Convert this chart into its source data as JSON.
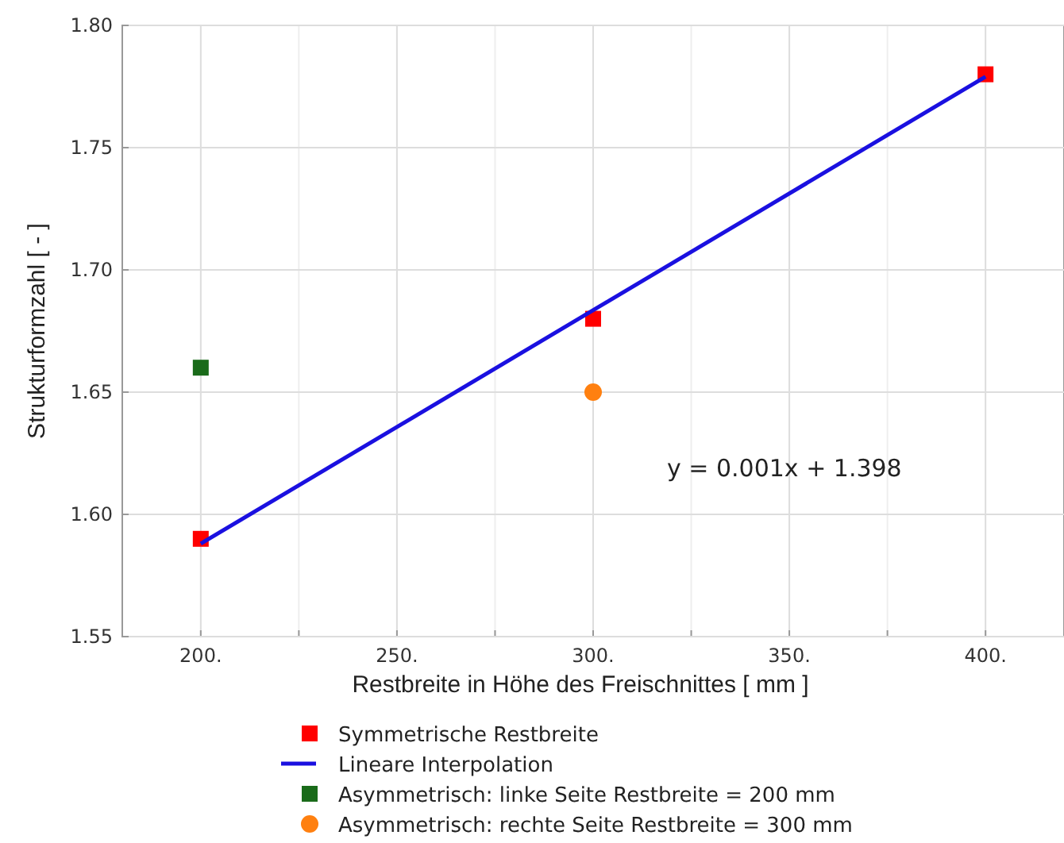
{
  "chart_data": {
    "type": "scatter",
    "xlabel": "Restbreite in Höhe des Freischnittes [ mm ]",
    "ylabel": "Strukturformzahl [ - ]",
    "xlim": [
      180,
      420
    ],
    "xticks": [
      {
        "value": 200,
        "label": "200."
      },
      {
        "value": 225,
        "label": null
      },
      {
        "value": 250,
        "label": "250."
      },
      {
        "value": 275,
        "label": null
      },
      {
        "value": 300,
        "label": "300."
      },
      {
        "value": 325,
        "label": null
      },
      {
        "value": 350,
        "label": "350."
      },
      {
        "value": 375,
        "label": null
      },
      {
        "value": 400,
        "label": "400."
      }
    ],
    "ylim": [
      1.55,
      1.8
    ],
    "yticks": [
      {
        "value": 1.55,
        "label": "1.55"
      },
      {
        "value": 1.6,
        "label": "1.60"
      },
      {
        "value": 1.65,
        "label": "1.65"
      },
      {
        "value": 1.7,
        "label": "1.70"
      },
      {
        "value": 1.75,
        "label": "1.75"
      },
      {
        "value": 1.8,
        "label": "1.80"
      }
    ],
    "grid": true,
    "legend": "bottom",
    "annotations": [
      "y = 0.001x + 1.398"
    ],
    "series": [
      {
        "name": "Symmetrische Restbreite",
        "marker": "square",
        "color": "#ff0000",
        "x": [
          200,
          300,
          400
        ],
        "values": [
          1.59,
          1.68,
          1.78
        ]
      },
      {
        "name": "Lineare Interpolation",
        "type": "line",
        "marker": "none",
        "line_style": "solid",
        "color": "#1a10e0",
        "x": [
          200,
          400
        ],
        "values": [
          1.588,
          1.779
        ]
      },
      {
        "name": "Asymmetrisch: linke Seite Restbreite = 200 mm",
        "marker": "square",
        "color": "#1a6b1a",
        "x": [
          200
        ],
        "values": [
          1.66
        ]
      },
      {
        "name": "Asymmetrisch: rechte Seite Restbreite = 300 mm",
        "marker": "circle",
        "color": "#ff8010",
        "x": [
          300
        ],
        "values": [
          1.65
        ]
      }
    ]
  }
}
